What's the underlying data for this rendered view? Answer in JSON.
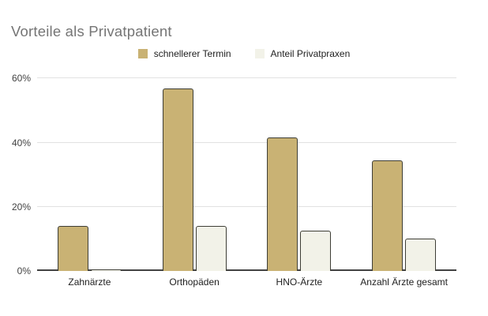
{
  "title": "Vorteile als Privatpatient",
  "legend": [
    {
      "label": "schnellerer Termin",
      "color": "#c9b274"
    },
    {
      "label": "Anteil Privatpraxen",
      "color": "#f2f2e8"
    }
  ],
  "colors": {
    "title_text": "#757575",
    "axis_text": "#424242",
    "label_text": "#212121",
    "gridline": "#e2e2e2",
    "axis_line": "#424242",
    "bar_border": "#3e3e36",
    "background": "#ffffff"
  },
  "chart_data": {
    "type": "bar",
    "title": "Vorteile als Privatpatient",
    "categories": [
      "Zahnärzte",
      "Orthopäden",
      "HNO-Ärzte",
      "Anzahl Ärzte gesamt"
    ],
    "series": [
      {
        "name": "schnellerer Termin",
        "color": "#c9b274",
        "values": [
          14,
          57,
          41.5,
          34.5
        ]
      },
      {
        "name": "Anteil Privatpraxen",
        "color": "#f2f2e8",
        "values": [
          0.5,
          14,
          12.5,
          10
        ]
      }
    ],
    "xlabel": "",
    "ylabel": "",
    "y_ticks": [
      "0%",
      "20%",
      "40%",
      "60%"
    ],
    "y_tick_values": [
      0,
      20,
      40,
      60
    ],
    "ylim": [
      0,
      65
    ],
    "grid": true,
    "legend_position": "top",
    "unit": "%"
  }
}
